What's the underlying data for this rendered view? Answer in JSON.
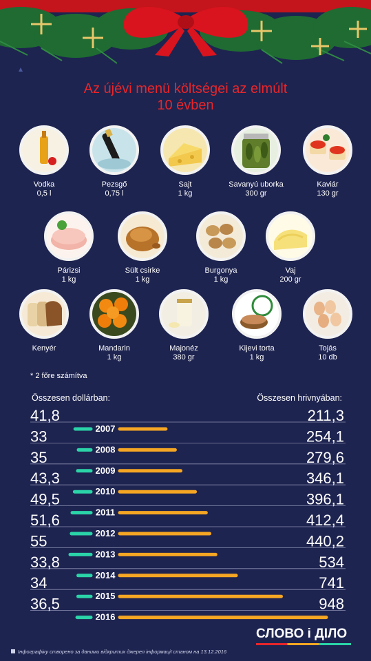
{
  "title_line1": "Az újévi menü költségei az elmúlt",
  "title_line2": "10 évben",
  "colors": {
    "background": "#1e2450",
    "title": "#e8262a",
    "usd_bar": "#2bd4a8",
    "uah_bar": "#f5a623",
    "bow": "#d9141e",
    "divider": "#8a8fb0"
  },
  "foods": [
    {
      "name": "Vodka",
      "qty": "0,5 l",
      "icon": "vodka-bottle-icon"
    },
    {
      "name": "Pezsgő",
      "qty": "0,75 l",
      "icon": "champagne-icon"
    },
    {
      "name": "Sajt",
      "qty": "1 kg",
      "icon": "cheese-icon"
    },
    {
      "name": "Savanyú uborka",
      "qty": "300 gr",
      "icon": "pickles-jar-icon"
    },
    {
      "name": "Kaviár",
      "qty": "130 gr",
      "icon": "caviar-icon"
    },
    {
      "name": "Párizsi",
      "qty": "1 kg",
      "icon": "sausage-icon"
    },
    {
      "name": "Sült csirke",
      "qty": "1 kg",
      "icon": "roast-chicken-icon"
    },
    {
      "name": "Burgonya",
      "qty": "1 kg",
      "icon": "potato-icon"
    },
    {
      "name": "Vaj",
      "qty": "200 gr",
      "icon": "butter-icon"
    },
    {
      "name": "Kenyér",
      "qty": "",
      "icon": "bread-icon"
    },
    {
      "name": "Mandarin",
      "qty": "1 kg",
      "icon": "mandarin-icon"
    },
    {
      "name": "Majonéz",
      "qty": "380 gr",
      "icon": "mayonnaise-icon"
    },
    {
      "name": "Kijevi torta",
      "qty": "1 kg",
      "icon": "kyiv-cake-icon"
    },
    {
      "name": "Tojás",
      "qty": "10 db",
      "icon": "eggs-icon"
    }
  ],
  "footnote": "* 2 főre számítva",
  "usd_heading": "Összesen dollárban:",
  "uah_heading": "Összesen hrivnyában:",
  "chart_data": {
    "type": "bar",
    "categories": [
      "2007",
      "2008",
      "2009",
      "2010",
      "2011",
      "2012",
      "2013",
      "2014",
      "2015",
      "2016"
    ],
    "series": [
      {
        "name": "Összesen dollárban",
        "labels": [
          "41,8",
          "33",
          "35",
          "43,3",
          "49,5",
          "51,6",
          "55",
          "33,8",
          "34",
          "36,5"
        ],
        "values": [
          41.8,
          33,
          35,
          43.3,
          49.5,
          51.6,
          55,
          33.8,
          34,
          36.5
        ]
      },
      {
        "name": "Összesen hrivnyában",
        "labels": [
          "211,3",
          "254,1",
          "279,6",
          "346,1",
          "396,1",
          "412,4",
          "440,2",
          "534",
          "741",
          "948"
        ],
        "values": [
          211.3,
          254.1,
          279.6,
          346.1,
          396.1,
          412.4,
          440.2,
          534,
          741,
          948
        ]
      }
    ]
  },
  "logo_text": "СЛОВО і ДІЛО",
  "source_text": "Інфографіку створено за даними відкритих джерел інформації станом на 13.12.2016"
}
